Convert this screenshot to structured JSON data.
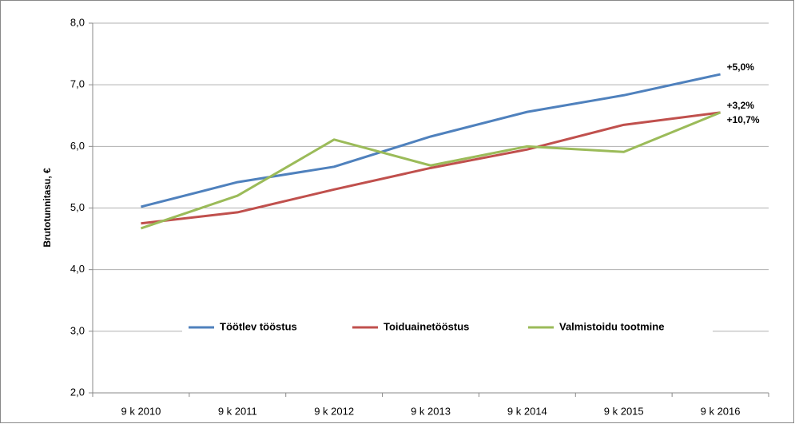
{
  "chart_data": {
    "type": "line",
    "y_label": "Brutotunnitasu, €",
    "categories": [
      "9 k 2010",
      "9 k 2011",
      "9 k 2012",
      "9 k 2013",
      "9 k 2014",
      "9 k 2015",
      "9 k 2016"
    ],
    "series": [
      {
        "name": "Töötlev tööstus",
        "color": "#4f81bd",
        "values": [
          5.02,
          5.42,
          5.67,
          6.16,
          6.56,
          6.83,
          7.17
        ],
        "end_label": "+5,0%"
      },
      {
        "name": "Toiduainetööstus",
        "color": "#c0504d",
        "values": [
          4.75,
          4.93,
          5.3,
          5.65,
          5.95,
          6.35,
          6.55
        ],
        "end_label": "+3,2%"
      },
      {
        "name": "Valmistoidu tootmine",
        "color": "#9bbb59",
        "values": [
          4.67,
          5.2,
          6.11,
          5.69,
          6.0,
          5.91,
          6.55
        ],
        "end_label": "+10,7%"
      }
    ],
    "ylim": [
      2,
      8
    ],
    "yticks": [
      {
        "value": 2,
        "label": "2,0"
      },
      {
        "value": 3,
        "label": "3,0"
      },
      {
        "value": 4,
        "label": "4,0"
      },
      {
        "value": 5,
        "label": "5,0"
      },
      {
        "value": 6,
        "label": "6,0"
      },
      {
        "value": 7,
        "label": "7,0"
      },
      {
        "value": 8,
        "label": "8,0"
      }
    ],
    "grid": true,
    "legend": "inside-bottom"
  }
}
